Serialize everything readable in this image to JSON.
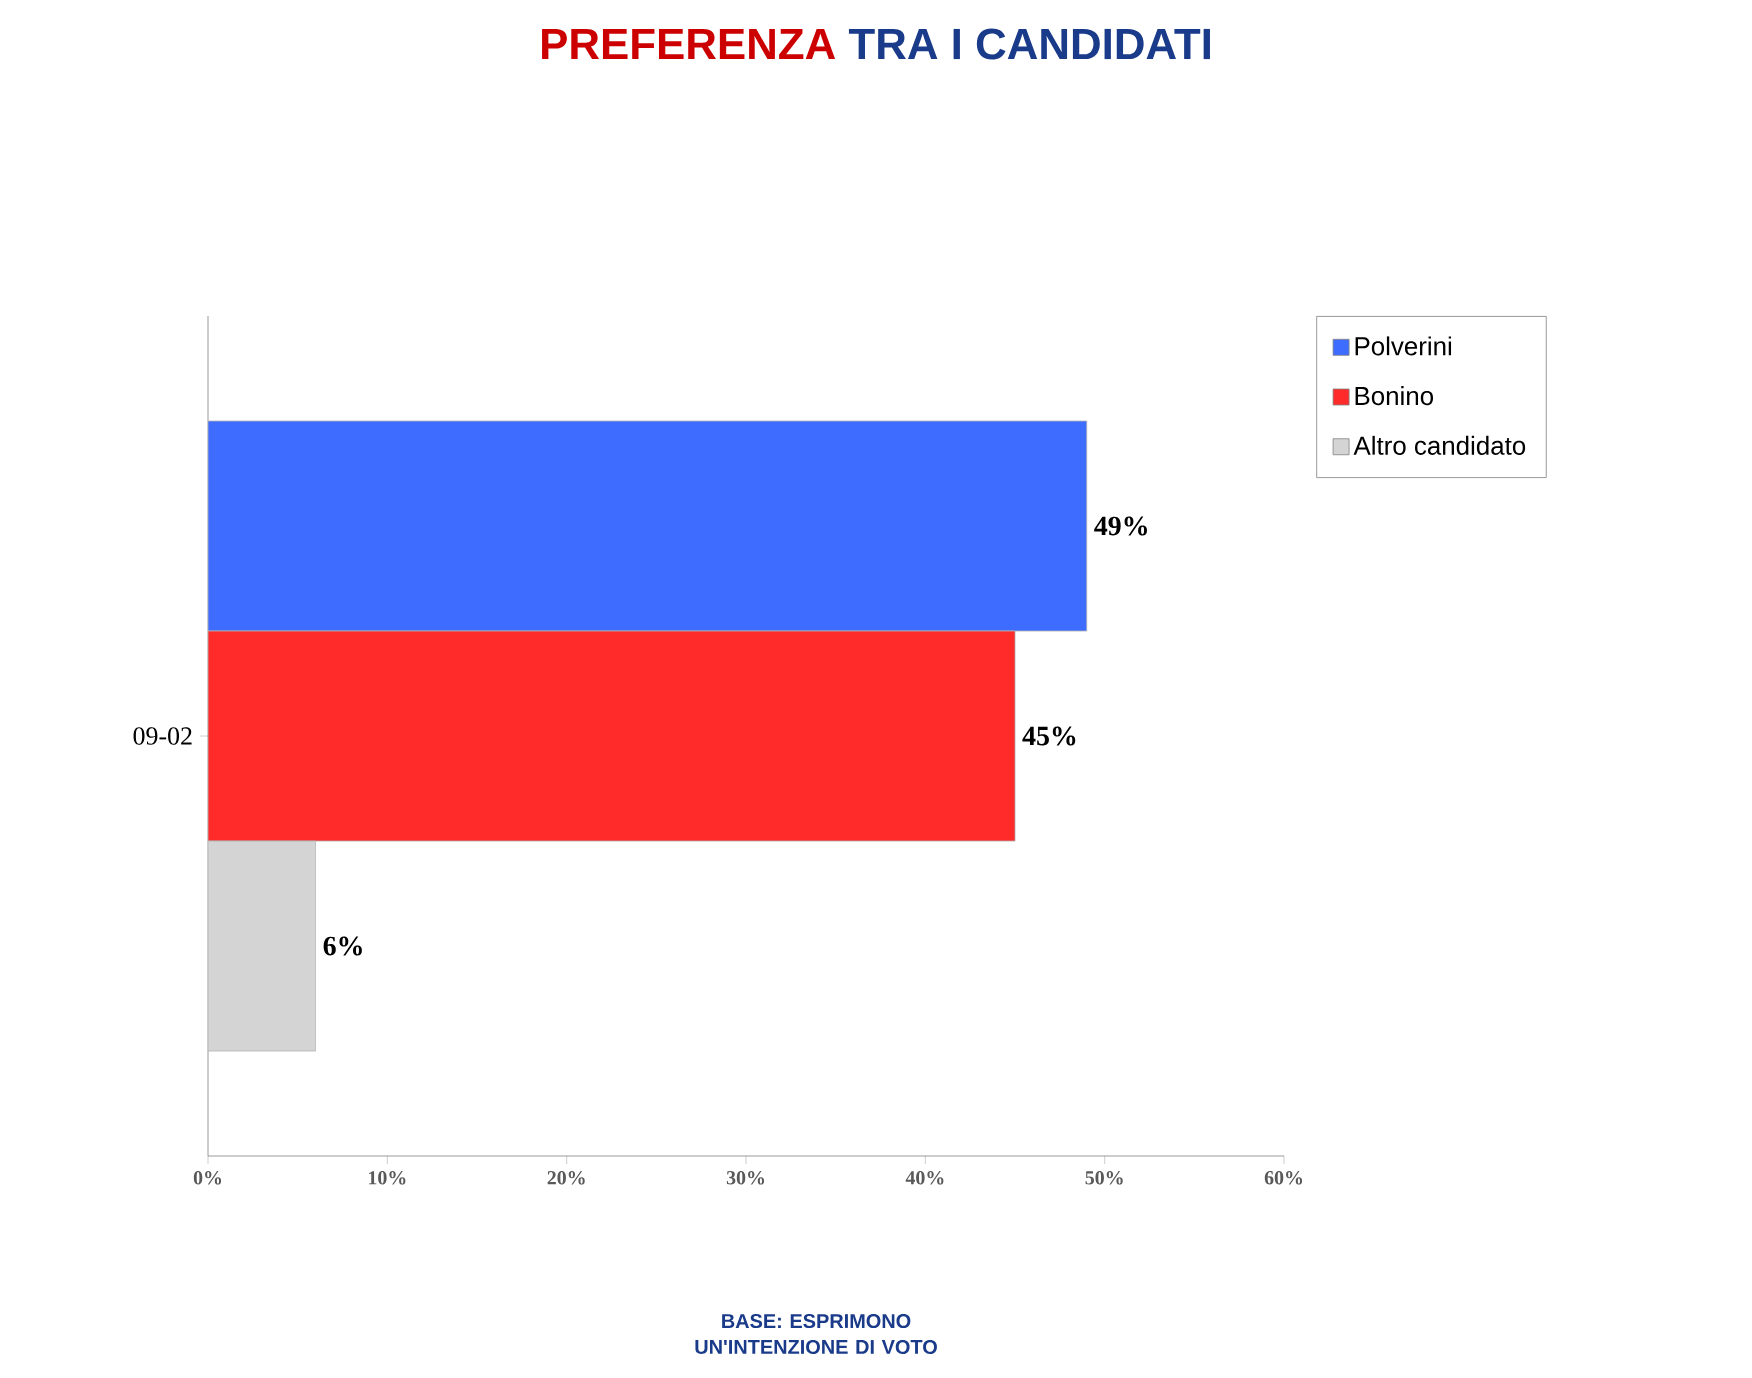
{
  "chart_data": {
    "type": "bar",
    "orientation": "horizontal",
    "title": "PREFERENZA",
    "subtitle": "TRA I CANDIDATI",
    "categories": [
      "09-02"
    ],
    "series": [
      {
        "name": "Polverini",
        "color": "#3d6cff",
        "values": [
          49
        ],
        "value_labels": [
          "49%"
        ]
      },
      {
        "name": "Bonino",
        "color": "#ff2a2a",
        "values": [
          45
        ],
        "value_labels": [
          "45%"
        ]
      },
      {
        "name": "Altro candidato",
        "color": "#d4d4d4",
        "values": [
          6
        ],
        "value_labels": [
          "6%"
        ]
      }
    ],
    "xlim": [
      0,
      60
    ],
    "xticks": [
      {
        "value": 0,
        "label": "0%"
      },
      {
        "value": 10,
        "label": "10%"
      },
      {
        "value": 20,
        "label": "20%"
      },
      {
        "value": 30,
        "label": "30%"
      },
      {
        "value": 40,
        "label": "40%"
      },
      {
        "value": 50,
        "label": "50%"
      },
      {
        "value": 60,
        "label": "60%"
      }
    ],
    "legend": "top right",
    "annotations": [
      "BASE: ESPRIMONO UN'INTENZIONE DI VOTO"
    ]
  }
}
